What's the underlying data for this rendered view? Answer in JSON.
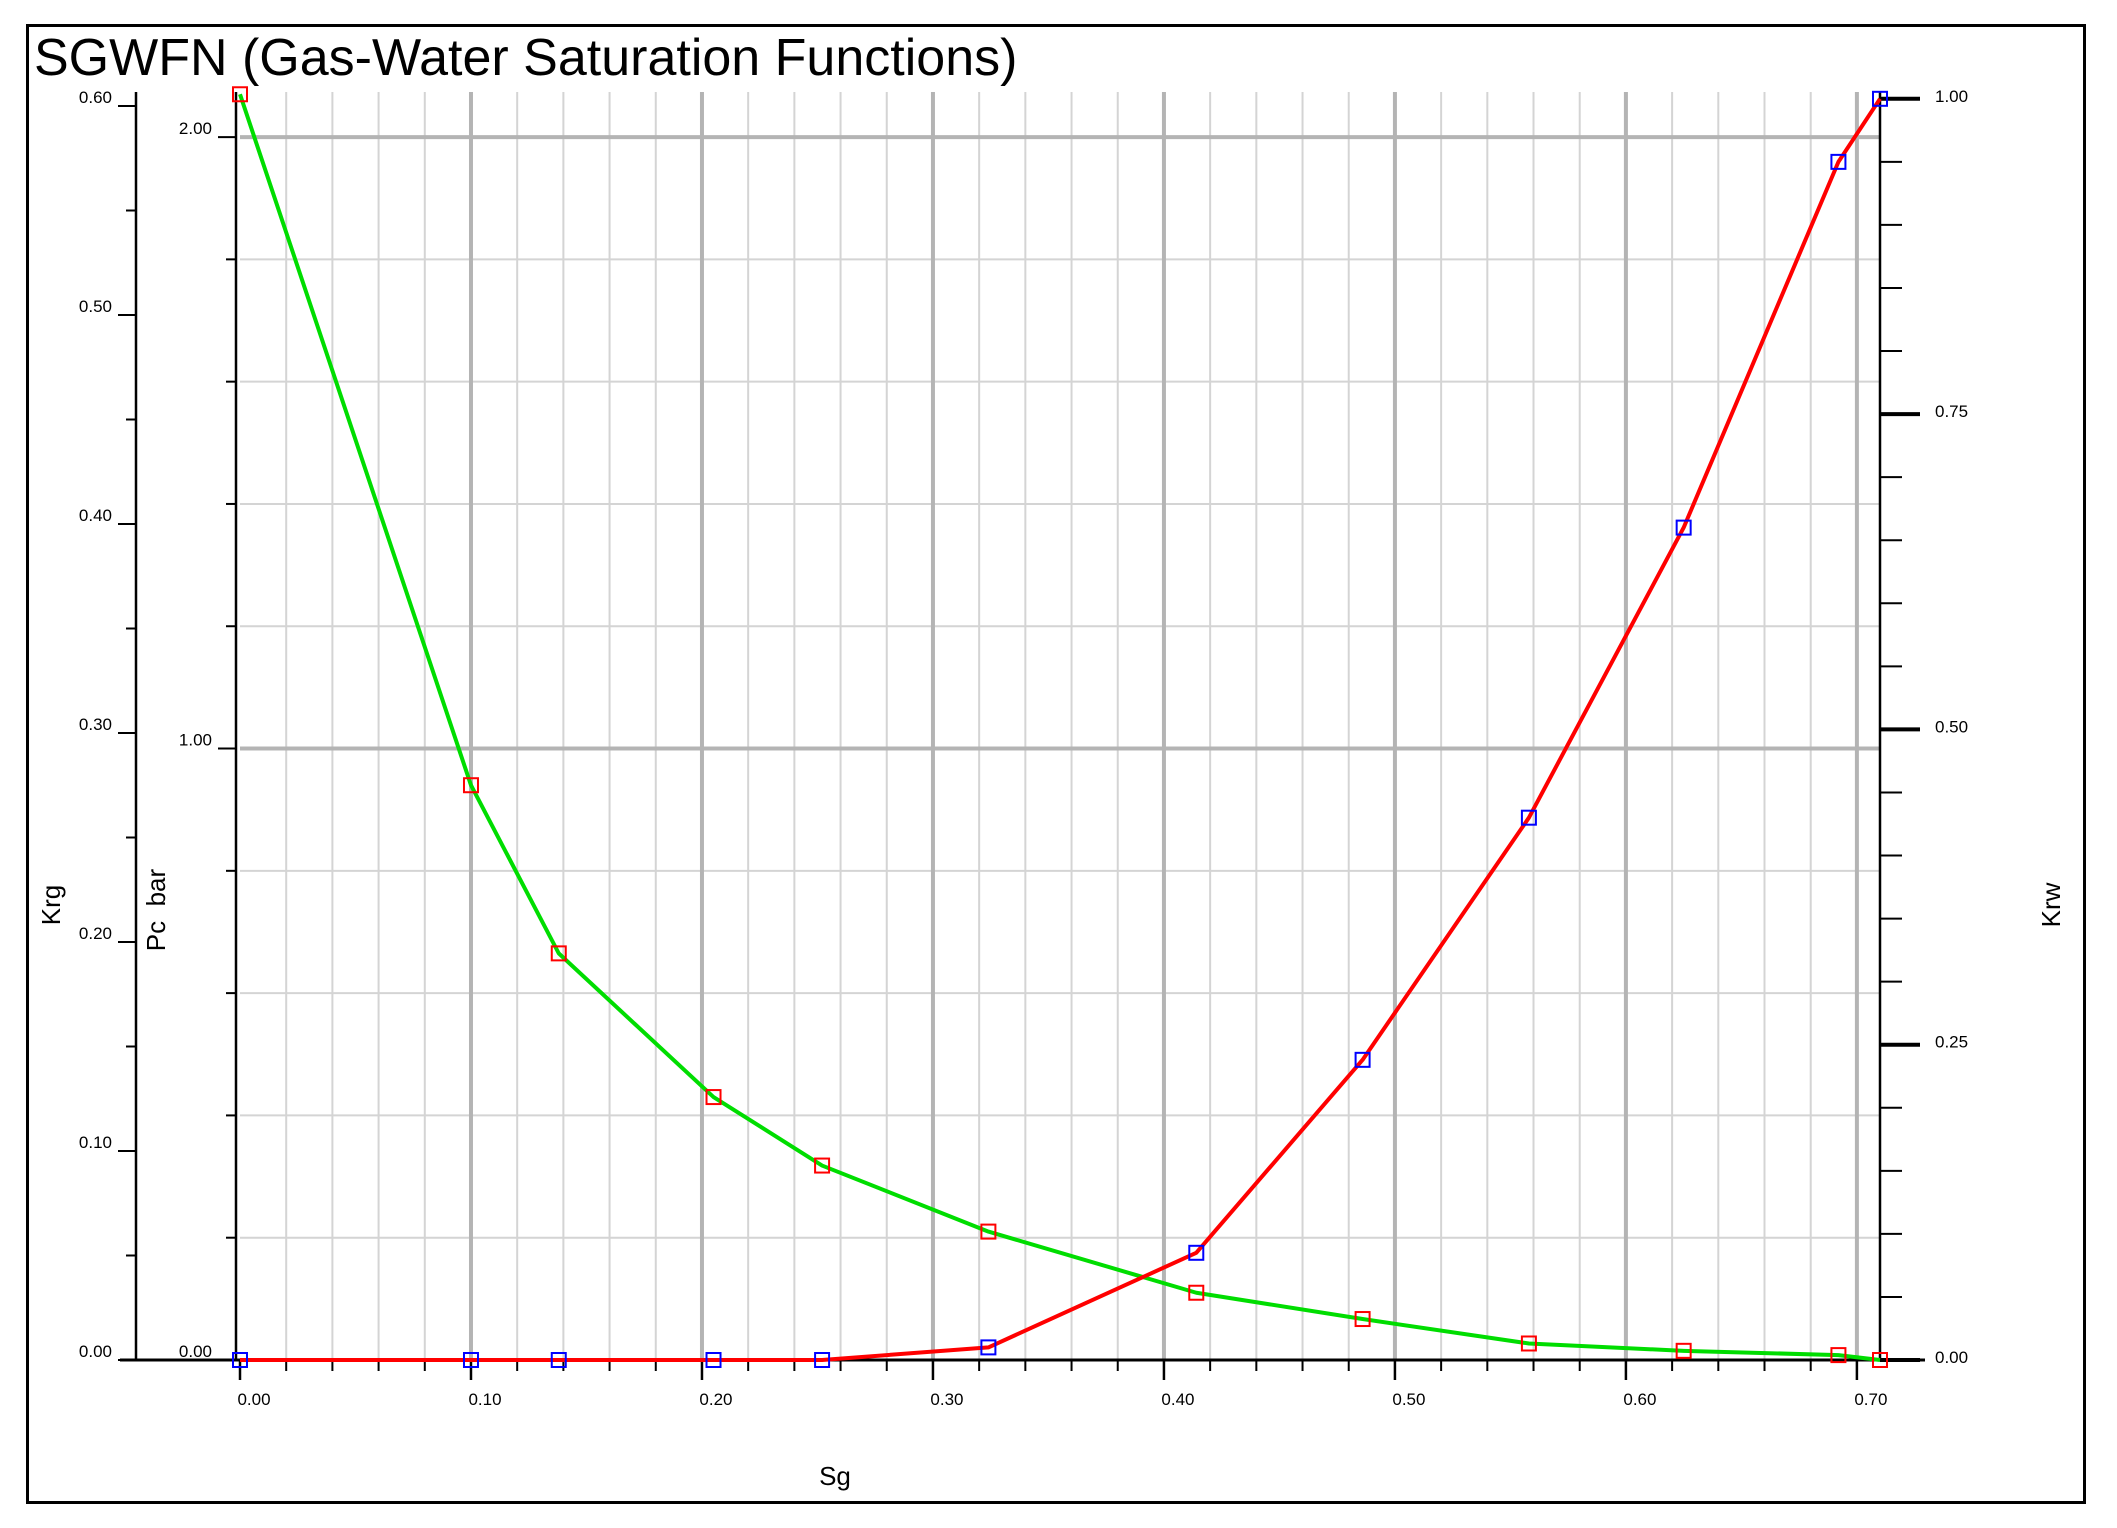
{
  "chart_data": {
    "type": "line",
    "title": "SGWFN (Gas-Water Saturation Functions)",
    "xlabel": "Sg",
    "ylabels": {
      "left_outer": "Krg",
      "left_inner": "Pc  bar",
      "right": "Krw"
    },
    "xlim": [
      0.0,
      0.71
    ],
    "ylim": {
      "Krg": [
        0.0,
        0.6067
      ],
      "Pc": [
        0.0,
        2.0737
      ],
      "Krw": [
        0.0,
        1.0054
      ]
    },
    "grid": true,
    "x_ticks": [
      "0.00",
      "0.10",
      "0.20",
      "0.30",
      "0.40",
      "0.50",
      "0.60",
      "0.70"
    ],
    "krg_ticks": [
      "0.00",
      "0.10",
      "0.20",
      "0.30",
      "0.40",
      "0.50",
      "0.60"
    ],
    "pc_ticks": [
      "0.00",
      "1.00",
      "2.00"
    ],
    "krw_ticks": [
      "0.00",
      "0.25",
      "0.50",
      "0.75",
      "1.00"
    ],
    "series": [
      {
        "name": "Pc",
        "color": "#00dd00",
        "marker_color": "#ff0000",
        "x": [
          0.0,
          0.1,
          0.138,
          0.205,
          0.252,
          0.324,
          0.414,
          0.486,
          0.558,
          0.625,
          0.692,
          0.71
        ],
        "y": [
          2.07,
          0.94,
          0.665,
          0.43,
          0.318,
          0.21,
          0.11,
          0.067,
          0.027,
          0.015,
          0.008,
          0.0
        ]
      },
      {
        "name": "Krw",
        "color": "#ff0000",
        "marker_color": "#0000ff",
        "x": [
          0.0,
          0.1,
          0.138,
          0.205,
          0.252,
          0.324,
          0.414,
          0.486,
          0.558,
          0.625,
          0.692,
          0.71
        ],
        "y": [
          0.0,
          0.0,
          0.0,
          0.0,
          0.0,
          0.01,
          0.085,
          0.238,
          0.43,
          0.66,
          0.95,
          1.0
        ]
      }
    ]
  }
}
